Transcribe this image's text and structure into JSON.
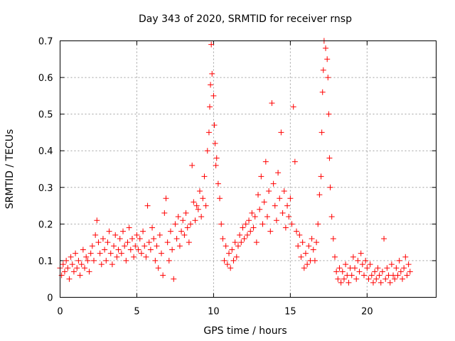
{
  "chart_data": {
    "type": "scatter",
    "title": "Day 343 of 2020, SRMTID for receiver rnsp",
    "xlabel": "GPS time / hours",
    "ylabel": "SRMTID / TECUs",
    "xlim": [
      0,
      24.5
    ],
    "ylim": [
      0,
      0.7
    ],
    "xticks": [
      0,
      5,
      10,
      15,
      20
    ],
    "xtick_labels": [
      "0",
      "5",
      "10",
      "15",
      "20"
    ],
    "yticks": [
      0,
      0.1,
      0.2,
      0.3,
      0.4,
      0.5,
      0.6,
      0.7
    ],
    "ytick_labels": [
      "0",
      "0.1",
      "0.2",
      "0.3",
      "0.4",
      "0.5",
      "0.6",
      "0.7"
    ],
    "grid": true,
    "marker": "plus",
    "series": [
      {
        "name": "SRMTID",
        "color": "#ff0000",
        "points": [
          [
            0.0,
            0.08
          ],
          [
            0.1,
            0.06
          ],
          [
            0.2,
            0.09
          ],
          [
            0.3,
            0.07
          ],
          [
            0.4,
            0.1
          ],
          [
            0.5,
            0.08
          ],
          [
            0.6,
            0.05
          ],
          [
            0.7,
            0.11
          ],
          [
            0.8,
            0.09
          ],
          [
            0.9,
            0.07
          ],
          [
            1.0,
            0.12
          ],
          [
            1.1,
            0.08
          ],
          [
            1.2,
            0.1
          ],
          [
            1.3,
            0.06
          ],
          [
            1.4,
            0.09
          ],
          [
            1.5,
            0.13
          ],
          [
            1.6,
            0.08
          ],
          [
            1.7,
            0.11
          ],
          [
            1.8,
            0.1
          ],
          [
            1.9,
            0.07
          ],
          [
            2.0,
            0.12
          ],
          [
            2.1,
            0.14
          ],
          [
            2.2,
            0.1
          ],
          [
            2.3,
            0.17
          ],
          [
            2.4,
            0.21
          ],
          [
            2.5,
            0.15
          ],
          [
            2.6,
            0.12
          ],
          [
            2.7,
            0.09
          ],
          [
            2.8,
            0.16
          ],
          [
            2.9,
            0.13
          ],
          [
            3.0,
            0.1
          ],
          [
            3.1,
            0.15
          ],
          [
            3.2,
            0.18
          ],
          [
            3.3,
            0.12
          ],
          [
            3.4,
            0.09
          ],
          [
            3.5,
            0.14
          ],
          [
            3.6,
            0.17
          ],
          [
            3.7,
            0.11
          ],
          [
            3.8,
            0.13
          ],
          [
            3.9,
            0.16
          ],
          [
            4.0,
            0.12
          ],
          [
            4.1,
            0.18
          ],
          [
            4.2,
            0.14
          ],
          [
            4.3,
            0.1
          ],
          [
            4.4,
            0.15
          ],
          [
            4.5,
            0.19
          ],
          [
            4.6,
            0.13
          ],
          [
            4.7,
            0.16
          ],
          [
            4.8,
            0.11
          ],
          [
            4.9,
            0.14
          ],
          [
            5.0,
            0.17
          ],
          [
            5.1,
            0.13
          ],
          [
            5.2,
            0.16
          ],
          [
            5.3,
            0.12
          ],
          [
            5.4,
            0.18
          ],
          [
            5.5,
            0.14
          ],
          [
            5.6,
            0.11
          ],
          [
            5.7,
            0.25
          ],
          [
            5.8,
            0.15
          ],
          [
            5.9,
            0.13
          ],
          [
            6.0,
            0.19
          ],
          [
            6.1,
            0.16
          ],
          [
            6.2,
            0.1
          ],
          [
            6.3,
            0.14
          ],
          [
            6.4,
            0.08
          ],
          [
            6.5,
            0.17
          ],
          [
            6.6,
            0.12
          ],
          [
            6.7,
            0.06
          ],
          [
            6.8,
            0.23
          ],
          [
            6.9,
            0.27
          ],
          [
            7.0,
            0.15
          ],
          [
            7.1,
            0.1
          ],
          [
            7.2,
            0.18
          ],
          [
            7.3,
            0.13
          ],
          [
            7.4,
            0.05
          ],
          [
            7.5,
            0.2
          ],
          [
            7.6,
            0.16
          ],
          [
            7.7,
            0.22
          ],
          [
            7.8,
            0.14
          ],
          [
            7.9,
            0.18
          ],
          [
            8.0,
            0.21
          ],
          [
            8.1,
            0.17
          ],
          [
            8.2,
            0.23
          ],
          [
            8.3,
            0.19
          ],
          [
            8.4,
            0.15
          ],
          [
            8.5,
            0.2
          ],
          [
            8.6,
            0.36
          ],
          [
            8.7,
            0.26
          ],
          [
            8.8,
            0.21
          ],
          [
            8.9,
            0.25
          ],
          [
            9.0,
            0.24
          ],
          [
            9.1,
            0.29
          ],
          [
            9.2,
            0.22
          ],
          [
            9.3,
            0.27
          ],
          [
            9.4,
            0.33
          ],
          [
            9.5,
            0.25
          ],
          [
            9.6,
            0.4
          ],
          [
            9.7,
            0.45
          ],
          [
            9.75,
            0.52
          ],
          [
            9.8,
            0.58
          ],
          [
            9.85,
            0.69
          ],
          [
            9.9,
            0.61
          ],
          [
            10.0,
            0.55
          ],
          [
            10.05,
            0.47
          ],
          [
            10.1,
            0.42
          ],
          [
            10.15,
            0.36
          ],
          [
            10.2,
            0.38
          ],
          [
            10.3,
            0.31
          ],
          [
            10.4,
            0.27
          ],
          [
            10.5,
            0.2
          ],
          [
            10.6,
            0.16
          ],
          [
            10.7,
            0.1
          ],
          [
            10.8,
            0.14
          ],
          [
            10.9,
            0.09
          ],
          [
            11.0,
            0.12
          ],
          [
            11.1,
            0.08
          ],
          [
            11.2,
            0.13
          ],
          [
            11.3,
            0.1
          ],
          [
            11.4,
            0.15
          ],
          [
            11.5,
            0.11
          ],
          [
            11.6,
            0.14
          ],
          [
            11.7,
            0.17
          ],
          [
            11.8,
            0.15
          ],
          [
            11.9,
            0.19
          ],
          [
            12.0,
            0.16
          ],
          [
            12.1,
            0.2
          ],
          [
            12.2,
            0.17
          ],
          [
            12.3,
            0.21
          ],
          [
            12.4,
            0.18
          ],
          [
            12.5,
            0.23
          ],
          [
            12.6,
            0.19
          ],
          [
            12.7,
            0.22
          ],
          [
            12.8,
            0.15
          ],
          [
            12.9,
            0.28
          ],
          [
            13.0,
            0.24
          ],
          [
            13.1,
            0.33
          ],
          [
            13.2,
            0.2
          ],
          [
            13.3,
            0.26
          ],
          [
            13.4,
            0.37
          ],
          [
            13.5,
            0.22
          ],
          [
            13.6,
            0.29
          ],
          [
            13.7,
            0.18
          ],
          [
            13.8,
            0.53
          ],
          [
            13.9,
            0.31
          ],
          [
            14.0,
            0.25
          ],
          [
            14.1,
            0.21
          ],
          [
            14.2,
            0.34
          ],
          [
            14.3,
            0.27
          ],
          [
            14.4,
            0.45
          ],
          [
            14.5,
            0.23
          ],
          [
            14.6,
            0.29
          ],
          [
            14.7,
            0.19
          ],
          [
            14.8,
            0.25
          ],
          [
            14.9,
            0.22
          ],
          [
            15.0,
            0.27
          ],
          [
            15.1,
            0.2
          ],
          [
            15.2,
            0.52
          ],
          [
            15.3,
            0.37
          ],
          [
            15.4,
            0.18
          ],
          [
            15.5,
            0.14
          ],
          [
            15.6,
            0.17
          ],
          [
            15.7,
            0.11
          ],
          [
            15.8,
            0.15
          ],
          [
            15.9,
            0.08
          ],
          [
            16.0,
            0.12
          ],
          [
            16.1,
            0.09
          ],
          [
            16.2,
            0.14
          ],
          [
            16.3,
            0.1
          ],
          [
            16.4,
            0.16
          ],
          [
            16.5,
            0.13
          ],
          [
            16.6,
            0.1
          ],
          [
            16.7,
            0.15
          ],
          [
            16.8,
            0.2
          ],
          [
            16.9,
            0.28
          ],
          [
            17.0,
            0.33
          ],
          [
            17.05,
            0.45
          ],
          [
            17.1,
            0.56
          ],
          [
            17.15,
            0.62
          ],
          [
            17.2,
            0.7
          ],
          [
            17.3,
            0.68
          ],
          [
            17.4,
            0.65
          ],
          [
            17.45,
            0.6
          ],
          [
            17.5,
            0.5
          ],
          [
            17.55,
            0.38
          ],
          [
            17.6,
            0.3
          ],
          [
            17.7,
            0.22
          ],
          [
            17.8,
            0.16
          ],
          [
            17.9,
            0.11
          ],
          [
            18.0,
            0.07
          ],
          [
            18.1,
            0.05
          ],
          [
            18.2,
            0.08
          ],
          [
            18.3,
            0.04
          ],
          [
            18.4,
            0.07
          ],
          [
            18.5,
            0.05
          ],
          [
            18.6,
            0.09
          ],
          [
            18.7,
            0.06
          ],
          [
            18.8,
            0.04
          ],
          [
            18.9,
            0.08
          ],
          [
            19.0,
            0.06
          ],
          [
            19.1,
            0.11
          ],
          [
            19.2,
            0.08
          ],
          [
            19.3,
            0.05
          ],
          [
            19.4,
            0.1
          ],
          [
            19.5,
            0.07
          ],
          [
            19.6,
            0.12
          ],
          [
            19.7,
            0.09
          ],
          [
            19.8,
            0.06
          ],
          [
            19.9,
            0.1
          ],
          [
            20.0,
            0.08
          ],
          [
            20.1,
            0.05
          ],
          [
            20.2,
            0.09
          ],
          [
            20.3,
            0.06
          ],
          [
            20.4,
            0.04
          ],
          [
            20.5,
            0.07
          ],
          [
            20.6,
            0.05
          ],
          [
            20.7,
            0.08
          ],
          [
            20.8,
            0.06
          ],
          [
            20.9,
            0.04
          ],
          [
            21.0,
            0.07
          ],
          [
            21.1,
            0.16
          ],
          [
            21.2,
            0.05
          ],
          [
            21.3,
            0.08
          ],
          [
            21.4,
            0.06
          ],
          [
            21.5,
            0.04
          ],
          [
            21.6,
            0.09
          ],
          [
            21.7,
            0.06
          ],
          [
            21.8,
            0.05
          ],
          [
            21.9,
            0.08
          ],
          [
            22.0,
            0.06
          ],
          [
            22.1,
            0.1
          ],
          [
            22.2,
            0.07
          ],
          [
            22.3,
            0.05
          ],
          [
            22.4,
            0.08
          ],
          [
            22.5,
            0.11
          ],
          [
            22.6,
            0.06
          ],
          [
            22.7,
            0.09
          ],
          [
            22.8,
            0.07
          ]
        ]
      }
    ]
  }
}
